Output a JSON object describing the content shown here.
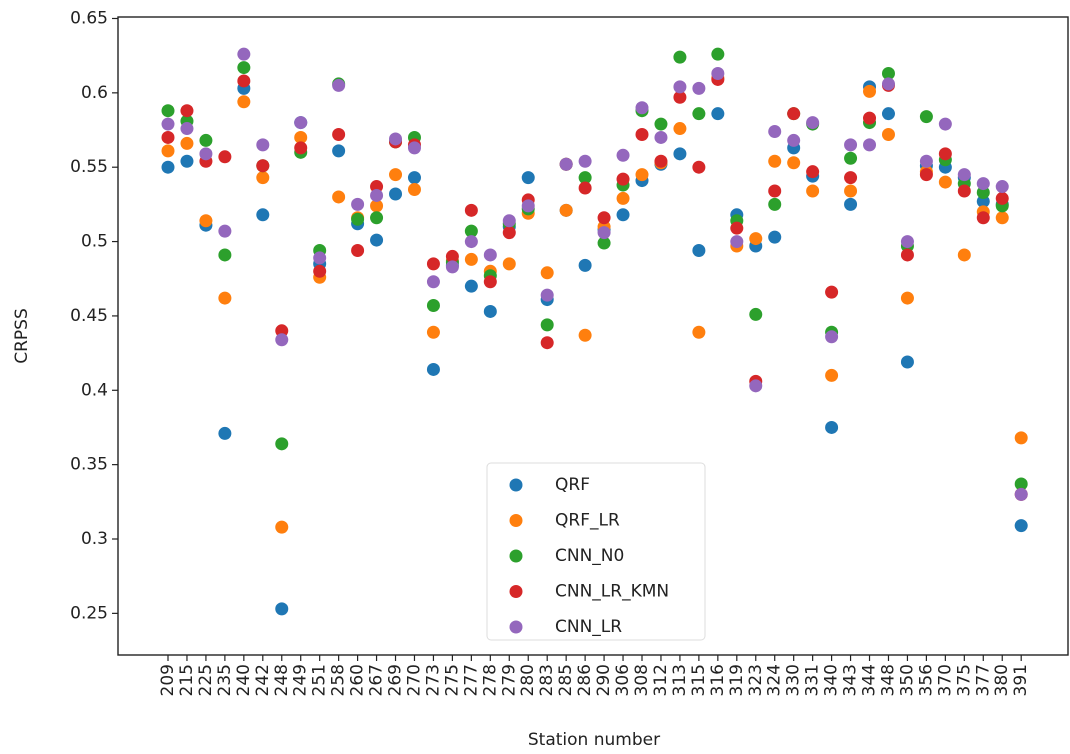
{
  "chart_data": {
    "type": "scatter",
    "x_label": "Station number",
    "y_label": "CRPSS",
    "categories": [
      "209",
      "215",
      "225",
      "235",
      "240",
      "242",
      "248",
      "249",
      "251",
      "258",
      "260",
      "267",
      "269",
      "270",
      "273",
      "275",
      "277",
      "278",
      "279",
      "280",
      "283",
      "285",
      "286",
      "290",
      "306",
      "308",
      "312",
      "313",
      "315",
      "316",
      "319",
      "323",
      "324",
      "330",
      "331",
      "340",
      "343",
      "344",
      "348",
      "350",
      "356",
      "370",
      "375",
      "377",
      "380",
      "391"
    ],
    "series": [
      {
        "name": "QRF",
        "color": "#1f77b4",
        "values": [
          0.55,
          0.554,
          0.511,
          0.371,
          0.603,
          0.518,
          0.253,
          0.58,
          0.485,
          0.561,
          0.512,
          0.501,
          0.532,
          0.543,
          0.414,
          0.484,
          0.47,
          0.453,
          0.51,
          0.543,
          0.461,
          0.521,
          0.484,
          0.508,
          0.518,
          0.541,
          0.552,
          0.559,
          0.494,
          0.586,
          0.518,
          0.497,
          0.503,
          0.563,
          0.544,
          0.375,
          0.525,
          0.604,
          0.586,
          0.419,
          0.551,
          0.55,
          0.543,
          0.527,
          0.525,
          0.309
        ]
      },
      {
        "name": "QRF_LR",
        "color": "#ff7f0e",
        "values": [
          0.561,
          0.566,
          0.514,
          0.462,
          0.594,
          0.543,
          0.308,
          0.57,
          0.476,
          0.53,
          0.516,
          0.524,
          0.545,
          0.535,
          0.439,
          0.487,
          0.488,
          0.48,
          0.485,
          0.519,
          0.479,
          0.521,
          0.437,
          0.51,
          0.529,
          0.545,
          0.553,
          0.576,
          0.439,
          0.61,
          0.497,
          0.502,
          0.554,
          0.553,
          0.534,
          0.41,
          0.534,
          0.601,
          0.572,
          0.462,
          0.547,
          0.54,
          0.491,
          0.52,
          0.516,
          0.368
        ]
      },
      {
        "name": "CNN_N0",
        "color": "#2ca02c",
        "values": [
          0.588,
          0.581,
          0.568,
          0.491,
          0.617,
          0.551,
          0.364,
          0.56,
          0.494,
          0.606,
          0.515,
          0.516,
          0.567,
          0.57,
          0.457,
          0.486,
          0.507,
          0.477,
          0.512,
          0.522,
          0.444,
          0.552,
          0.543,
          0.499,
          0.538,
          0.588,
          0.579,
          0.624,
          0.586,
          0.626,
          0.514,
          0.451,
          0.525,
          0.586,
          0.579,
          0.439,
          0.556,
          0.58,
          0.613,
          0.497,
          0.584,
          0.555,
          0.539,
          0.533,
          0.524,
          0.337
        ]
      },
      {
        "name": "CNN_LR_KMN",
        "color": "#d62728",
        "values": [
          0.57,
          0.588,
          0.554,
          0.557,
          0.608,
          0.551,
          0.44,
          0.563,
          0.48,
          0.572,
          0.494,
          0.537,
          0.567,
          0.565,
          0.485,
          0.49,
          0.521,
          0.473,
          0.506,
          0.528,
          0.432,
          0.552,
          0.536,
          0.516,
          0.542,
          0.572,
          0.554,
          0.597,
          0.55,
          0.609,
          0.509,
          0.406,
          0.534,
          0.586,
          0.547,
          0.466,
          0.543,
          0.583,
          0.605,
          0.491,
          0.545,
          0.559,
          0.534,
          0.516,
          0.529,
          0.33
        ]
      },
      {
        "name": "CNN_LR",
        "color": "#9467bd",
        "values": [
          0.579,
          0.576,
          0.559,
          0.507,
          0.626,
          0.565,
          0.434,
          0.58,
          0.489,
          0.605,
          0.525,
          0.531,
          0.569,
          0.563,
          0.473,
          0.483,
          0.5,
          0.491,
          0.514,
          0.524,
          0.464,
          0.552,
          0.554,
          0.506,
          0.558,
          0.59,
          0.57,
          0.604,
          0.603,
          0.613,
          0.5,
          0.403,
          0.574,
          0.568,
          0.58,
          0.436,
          0.565,
          0.565,
          0.606,
          0.5,
          0.554,
          0.579,
          0.545,
          0.539,
          0.537,
          0.33
        ]
      }
    ],
    "ylim": [
      0.222,
      0.651
    ],
    "yticks": [
      0.25,
      0.3,
      0.35,
      0.4,
      0.45,
      0.5,
      0.55,
      0.6,
      0.65
    ],
    "legend": "lower center"
  }
}
